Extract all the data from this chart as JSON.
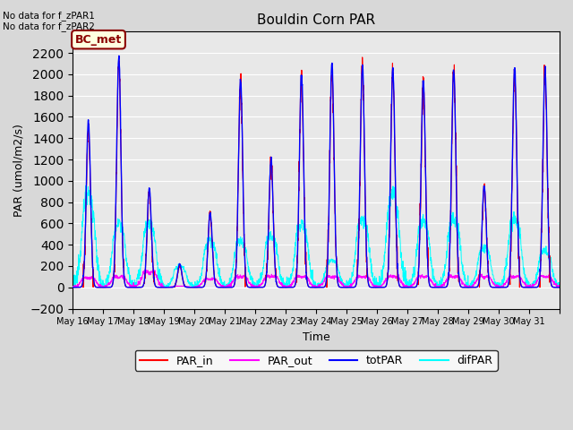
{
  "title": "Bouldin Corn PAR",
  "xlabel": "Time",
  "ylabel": "PAR (umol/m2/s)",
  "ylim": [
    -200,
    2400
  ],
  "yticks": [
    -200,
    0,
    200,
    400,
    600,
    800,
    1000,
    1200,
    1400,
    1600,
    1800,
    2000,
    2200
  ],
  "background_color": "#e8e8e8",
  "legend_labels": [
    "PAR_in",
    "PAR_out",
    "totPAR",
    "difPAR"
  ],
  "legend_colors": [
    "red",
    "magenta",
    "blue",
    "cyan"
  ],
  "nodata_text": [
    "No data for f_zPAR1",
    "No data for f_zPAR2"
  ],
  "bc_met_label": "BC_met",
  "n_days": 16,
  "start_day": 16,
  "points_per_day": 144,
  "daily_peaks_tot": [
    1550,
    2150,
    930,
    220,
    700,
    1950,
    1200,
    2000,
    2100,
    2100,
    2050,
    1950,
    2050,
    950,
    2050,
    2050
  ],
  "daily_peaks_in": [
    1480,
    2100,
    900,
    200,
    680,
    1900,
    1150,
    1950,
    2050,
    2050,
    2000,
    1900,
    2000,
    930,
    2000,
    2000
  ],
  "daily_dif_peaks": [
    900,
    600,
    620,
    200,
    450,
    450,
    500,
    600,
    260,
    650,
    880,
    620,
    650,
    380,
    650,
    350
  ],
  "daily_out_peaks": [
    80,
    90,
    130,
    10,
    70,
    90,
    90,
    90,
    90,
    90,
    90,
    90,
    90,
    90,
    90,
    90
  ]
}
